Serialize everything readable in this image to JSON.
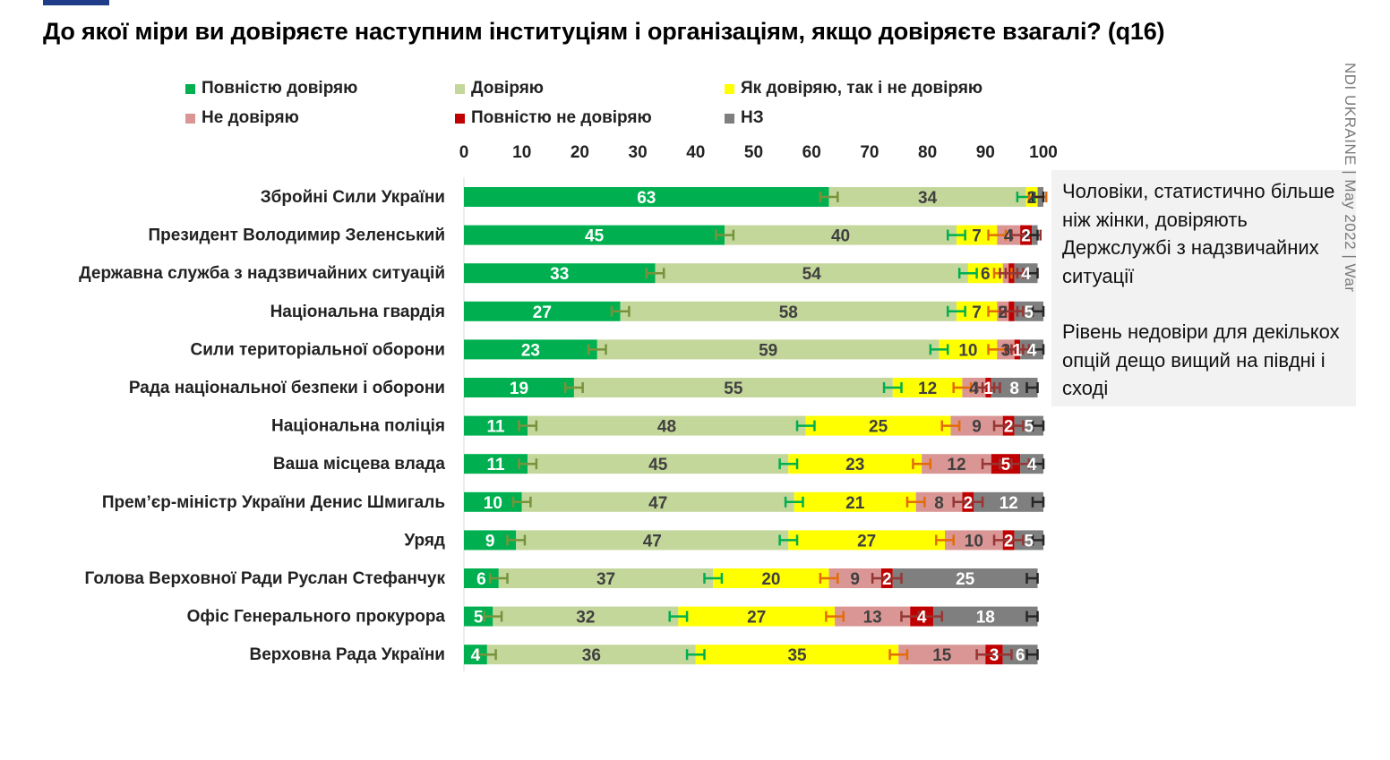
{
  "title": "До якої міри ви довіряєте наступним інституціям і організаціям, якщо довіряєте взагалі? (q16)",
  "side_label": "NDI UKRAINE | May 2022 | War",
  "note": {
    "paragraph1": "Чоловіки, статистично більше ніж жінки, довіряють Держслужбі з надзвичайних ситуації",
    "paragraph2": "Рівень недовіри для декількох опцій дещо вищий на півдні і сході"
  },
  "colors": {
    "full_trust": "#00b050",
    "trust": "#c4d79b",
    "neutral": "#ffff00",
    "distrust": "#da9694",
    "full_distrust": "#c00000",
    "dk": "#7f7f7f",
    "err_full_trust": "#76933c",
    "err_trust": "#00b050",
    "err_neutral": "#e36c09",
    "err_distrust": "#963634",
    "err_dk": "#262626"
  },
  "chart_data": {
    "type": "bar",
    "orientation": "horizontal",
    "stacked": true,
    "xlim": [
      0,
      100
    ],
    "xticks": [
      0,
      10,
      20,
      30,
      40,
      50,
      60,
      70,
      80,
      90,
      100
    ],
    "legend_position": "top",
    "categories": [
      "Збройні Сили України",
      "Президент Володимир Зеленський",
      "Державна служба з надзвичайних ситуацій",
      "Національна гвардія",
      "Сили територіальної оборони",
      "Рада національної безпеки і оборони",
      "Національна поліція",
      "Ваша місцева влада",
      "Прем’єр-міністр України Денис Шмигаль",
      "Уряд",
      "Голова Верховної Ради Руслан Стефанчук",
      "Офіс Генерального прокурора",
      "Верховна Рада України"
    ],
    "series": [
      {
        "name": "Повністю довіряю",
        "key": "full_trust",
        "values": [
          63,
          45,
          33,
          27,
          23,
          19,
          11,
          11,
          10,
          9,
          6,
          5,
          4
        ]
      },
      {
        "name": "Довіряю",
        "key": "trust",
        "values": [
          34,
          40,
          54,
          58,
          59,
          55,
          48,
          45,
          47,
          47,
          37,
          32,
          36
        ]
      },
      {
        "name": "Як довіряю, так і не довіряю",
        "key": "neutral",
        "values": [
          2,
          7,
          6,
          7,
          10,
          12,
          25,
          23,
          21,
          27,
          20,
          27,
          35
        ]
      },
      {
        "name": "Не довіряю",
        "key": "distrust",
        "values": [
          0,
          4,
          1,
          2,
          3,
          4,
          9,
          12,
          8,
          10,
          9,
          13,
          15
        ]
      },
      {
        "name": "Повністю не довіряю",
        "key": "full_distrust",
        "values": [
          0,
          2,
          1,
          1,
          1,
          1,
          2,
          5,
          2,
          2,
          2,
          4,
          3
        ]
      },
      {
        "name": "НЗ",
        "key": "dk",
        "values": [
          1,
          1,
          4,
          5,
          4,
          8,
          5,
          4,
          12,
          5,
          25,
          18,
          6
        ]
      }
    ],
    "bar_labels": [
      [
        "63",
        "34",
        "2",
        "",
        "",
        ""
      ],
      [
        "45",
        "40",
        "7",
        "4",
        "2",
        ""
      ],
      [
        "33",
        "54",
        "6",
        "",
        "",
        "4"
      ],
      [
        "27",
        "58",
        "7",
        "2",
        "",
        "5"
      ],
      [
        "23",
        "59",
        "10",
        "3",
        "1",
        "4"
      ],
      [
        "19",
        "55",
        "12",
        "4",
        "1",
        "8"
      ],
      [
        "11",
        "48",
        "25",
        "9",
        "2",
        "5"
      ],
      [
        "11",
        "45",
        "23",
        "12",
        "5",
        "4"
      ],
      [
        "10",
        "47",
        "21",
        "8",
        "2",
        "12"
      ],
      [
        "9",
        "47",
        "27",
        "10",
        "2",
        "5"
      ],
      [
        "6",
        "37",
        "20",
        "9",
        "2",
        "25"
      ],
      [
        "5",
        "32",
        "27",
        "13",
        "4",
        "18"
      ],
      [
        "4",
        "36",
        "35",
        "15",
        "3",
        "6"
      ]
    ],
    "error_margin": 1.5
  }
}
